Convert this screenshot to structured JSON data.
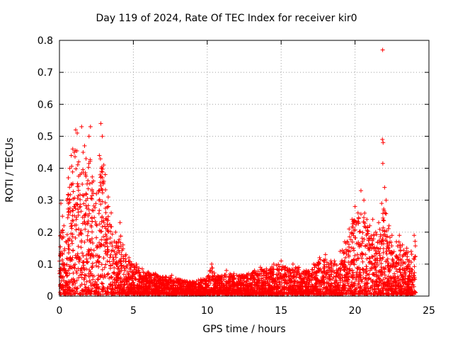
{
  "chart_data": {
    "type": "scatter",
    "title": "Day 119 of 2024, Rate Of TEC Index for receiver kir0",
    "xlabel": "GPS time / hours",
    "ylabel": "ROTI / TECUs",
    "xlim": [
      0,
      25
    ],
    "ylim": [
      0,
      0.8
    ],
    "xticks": [
      0,
      5,
      10,
      15,
      20,
      25
    ],
    "yticks": [
      0,
      0.1,
      0.2,
      0.3,
      0.4,
      0.5,
      0.6,
      0.7,
      0.8
    ],
    "grid": true,
    "marker": "+",
    "color": "#ff0000",
    "series": [
      {
        "name": "ROTI",
        "points": [
          [
            0.1,
            0.29
          ],
          [
            0.2,
            0.25
          ],
          [
            0.3,
            0.22
          ],
          [
            0.5,
            0.3
          ],
          [
            0.6,
            0.37
          ],
          [
            0.7,
            0.4
          ],
          [
            0.8,
            0.44
          ],
          [
            0.9,
            0.46
          ],
          [
            1.0,
            0.45
          ],
          [
            1.1,
            0.52
          ],
          [
            1.2,
            0.51
          ],
          [
            1.3,
            0.42
          ],
          [
            1.4,
            0.38
          ],
          [
            1.5,
            0.53
          ],
          [
            1.6,
            0.45
          ],
          [
            1.7,
            0.47
          ],
          [
            1.8,
            0.43
          ],
          [
            2.0,
            0.5
          ],
          [
            2.1,
            0.53
          ],
          [
            2.3,
            0.36
          ],
          [
            2.5,
            0.32
          ],
          [
            2.7,
            0.44
          ],
          [
            2.8,
            0.54
          ],
          [
            2.9,
            0.5
          ],
          [
            3.0,
            0.41
          ],
          [
            3.1,
            0.38
          ],
          [
            3.3,
            0.31
          ],
          [
            3.5,
            0.26
          ],
          [
            3.8,
            0.2
          ],
          [
            4.0,
            0.17
          ],
          [
            4.1,
            0.23
          ],
          [
            4.3,
            0.16
          ],
          [
            4.5,
            0.13
          ],
          [
            4.7,
            0.12
          ],
          [
            5.2,
            0.1
          ],
          [
            5.6,
            0.085
          ],
          [
            6.0,
            0.075
          ],
          [
            6.5,
            0.07
          ],
          [
            7.0,
            0.06
          ],
          [
            7.6,
            0.065
          ],
          [
            8.2,
            0.05
          ],
          [
            8.8,
            0.045
          ],
          [
            9.4,
            0.05
          ],
          [
            10.0,
            0.06
          ],
          [
            10.3,
            0.1
          ],
          [
            10.8,
            0.06
          ],
          [
            11.3,
            0.08
          ],
          [
            11.8,
            0.07
          ],
          [
            12.3,
            0.065
          ],
          [
            12.8,
            0.07
          ],
          [
            13.2,
            0.08
          ],
          [
            13.6,
            0.09
          ],
          [
            14.0,
            0.085
          ],
          [
            14.5,
            0.1
          ],
          [
            15.0,
            0.11
          ],
          [
            15.3,
            0.09
          ],
          [
            15.8,
            0.1
          ],
          [
            16.2,
            0.09
          ],
          [
            16.7,
            0.08
          ],
          [
            17.2,
            0.1
          ],
          [
            17.6,
            0.12
          ],
          [
            18.0,
            0.13
          ],
          [
            18.6,
            0.11
          ],
          [
            19.0,
            0.14
          ],
          [
            19.3,
            0.17
          ],
          [
            19.6,
            0.21
          ],
          [
            19.8,
            0.24
          ],
          [
            20.0,
            0.28
          ],
          [
            20.2,
            0.26
          ],
          [
            20.4,
            0.33
          ],
          [
            20.6,
            0.3
          ],
          [
            20.8,
            0.24
          ],
          [
            21.0,
            0.22
          ],
          [
            21.2,
            0.24
          ],
          [
            21.4,
            0.2
          ],
          [
            21.6,
            0.23
          ],
          [
            21.8,
            0.29
          ],
          [
            21.85,
            0.49
          ],
          [
            21.9,
            0.48
          ],
          [
            21.87,
            0.77
          ],
          [
            21.88,
            0.415
          ],
          [
            22.0,
            0.34
          ],
          [
            22.1,
            0.3
          ],
          [
            22.3,
            0.22
          ],
          [
            22.5,
            0.19
          ],
          [
            22.8,
            0.17
          ],
          [
            23.0,
            0.19
          ],
          [
            23.2,
            0.16
          ],
          [
            23.5,
            0.15
          ],
          [
            23.8,
            0.14
          ],
          [
            24.0,
            0.19
          ]
        ]
      }
    ]
  }
}
